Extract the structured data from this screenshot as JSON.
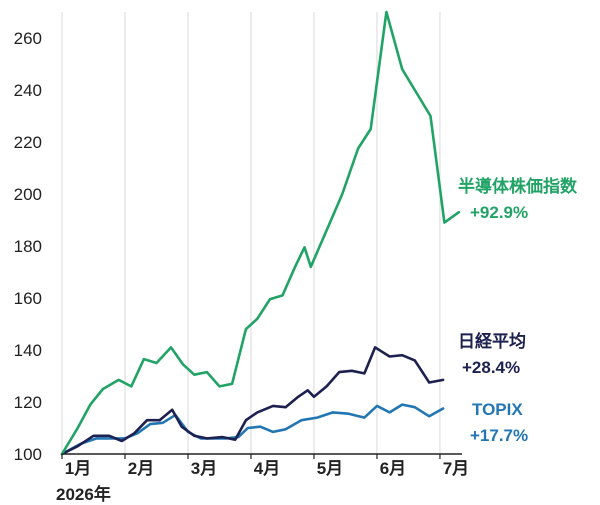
{
  "chart_data": {
    "type": "line",
    "year_label": "2026年",
    "x_ticks": [
      "1月",
      "2月",
      "3月",
      "4月",
      "5月",
      "6月",
      "7月"
    ],
    "ylim": [
      100,
      270
    ],
    "y_ticks": [
      100,
      120,
      140,
      160,
      180,
      200,
      220,
      240,
      260
    ],
    "grid": "vertical",
    "x_unit": "month (1.0 = 1月 start)",
    "series": [
      {
        "key": "semi",
        "name": "半導体株価指数",
        "change": "+92.9%",
        "color": "#22a366",
        "points": [
          [
            1.0,
            100
          ],
          [
            1.25,
            110
          ],
          [
            1.45,
            119
          ],
          [
            1.65,
            125
          ],
          [
            1.9,
            128.5
          ],
          [
            2.1,
            126
          ],
          [
            2.3,
            136.5
          ],
          [
            2.5,
            135
          ],
          [
            2.73,
            141
          ],
          [
            2.92,
            134.5
          ],
          [
            3.1,
            130.5
          ],
          [
            3.3,
            131.5
          ],
          [
            3.5,
            126
          ],
          [
            3.7,
            127
          ],
          [
            3.92,
            148
          ],
          [
            4.1,
            152
          ],
          [
            4.3,
            159.5
          ],
          [
            4.5,
            161
          ],
          [
            4.7,
            172
          ],
          [
            4.85,
            179.5
          ],
          [
            4.95,
            172
          ],
          [
            5.2,
            186
          ],
          [
            5.45,
            200
          ],
          [
            5.7,
            217.5
          ],
          [
            5.9,
            225
          ],
          [
            6.15,
            270
          ],
          [
            6.4,
            248
          ],
          [
            6.6,
            240
          ],
          [
            6.85,
            230
          ],
          [
            7.07,
            189
          ],
          [
            7.3,
            193
          ]
        ]
      },
      {
        "key": "nikkei",
        "name": "日経平均",
        "change": "+28.4%",
        "color": "#1c2150",
        "points": [
          [
            1.0,
            100
          ],
          [
            1.25,
            103
          ],
          [
            1.5,
            107
          ],
          [
            1.75,
            107
          ],
          [
            1.95,
            105
          ],
          [
            2.15,
            108
          ],
          [
            2.35,
            113
          ],
          [
            2.55,
            113
          ],
          [
            2.75,
            117
          ],
          [
            2.9,
            110.5
          ],
          [
            3.1,
            107
          ],
          [
            3.3,
            106
          ],
          [
            3.55,
            106.5
          ],
          [
            3.75,
            105.5
          ],
          [
            3.92,
            113
          ],
          [
            4.1,
            116
          ],
          [
            4.35,
            118.5
          ],
          [
            4.55,
            118
          ],
          [
            4.75,
            122
          ],
          [
            4.9,
            124.5
          ],
          [
            5.0,
            122
          ],
          [
            5.2,
            126
          ],
          [
            5.4,
            131.5
          ],
          [
            5.6,
            132
          ],
          [
            5.8,
            131
          ],
          [
            5.97,
            141
          ],
          [
            6.2,
            137.5
          ],
          [
            6.4,
            138
          ],
          [
            6.6,
            136
          ],
          [
            6.83,
            127.5
          ],
          [
            7.05,
            128.5
          ]
        ]
      },
      {
        "key": "topix",
        "name": "TOPIX",
        "change": "+17.7%",
        "color": "#2276b3",
        "points": [
          [
            1.0,
            100
          ],
          [
            1.3,
            104
          ],
          [
            1.55,
            106
          ],
          [
            1.8,
            106
          ],
          [
            2.0,
            106
          ],
          [
            2.2,
            108
          ],
          [
            2.4,
            111.5
          ],
          [
            2.6,
            112
          ],
          [
            2.8,
            115
          ],
          [
            3.0,
            108.5
          ],
          [
            3.2,
            106
          ],
          [
            3.4,
            106
          ],
          [
            3.6,
            106
          ],
          [
            3.8,
            106.5
          ],
          [
            3.95,
            110
          ],
          [
            4.15,
            110.5
          ],
          [
            4.35,
            108.5
          ],
          [
            4.55,
            109.5
          ],
          [
            4.8,
            113
          ],
          [
            5.05,
            114
          ],
          [
            5.3,
            116
          ],
          [
            5.55,
            115.5
          ],
          [
            5.8,
            114
          ],
          [
            6.0,
            118.5
          ],
          [
            6.2,
            116
          ],
          [
            6.4,
            119
          ],
          [
            6.6,
            118
          ],
          [
            6.83,
            114.5
          ],
          [
            7.05,
            117.5
          ]
        ]
      }
    ]
  }
}
